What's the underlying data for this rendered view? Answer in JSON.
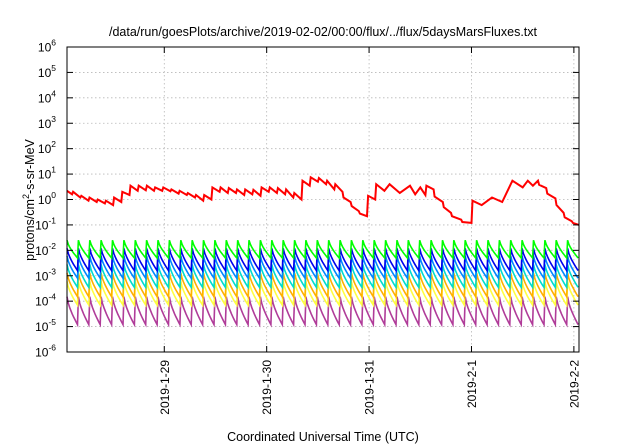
{
  "chart_data": {
    "type": "line",
    "title": "/data/run/goesPlots/archive/2019-02-02/00:00/flux/../flux/5daysMarsFluxes.txt",
    "xlabel": "Coordinated Universal Time (UTC)",
    "ylabel": "protons/cm²-s-sr-MeV",
    "ylabel_base": "protons/cm",
    "ylabel_sup": "2",
    "ylabel_rest": "-s-sr-MeV",
    "yscale": "log",
    "ylim": [
      1e-06,
      1000000.0
    ],
    "xlim_days": [
      -0.95,
      4.05
    ],
    "grid": true,
    "x_ticks": [
      {
        "label": "2019-1-29",
        "day": 0
      },
      {
        "label": "2019-1-30",
        "day": 1
      },
      {
        "label": "2019-1-31",
        "day": 2
      },
      {
        "label": "2019-2-1",
        "day": 3
      },
      {
        "label": "2019-2-2",
        "day": 4
      }
    ],
    "y_ticks": [
      {
        "exp": -6
      },
      {
        "exp": -5
      },
      {
        "exp": -4
      },
      {
        "exp": -3
      },
      {
        "exp": -2
      },
      {
        "exp": -1
      },
      {
        "exp": 0
      },
      {
        "exp": 1
      },
      {
        "exp": 2
      },
      {
        "exp": 3
      },
      {
        "exp": 4
      },
      {
        "exp": 5
      },
      {
        "exp": 6
      }
    ],
    "y_tick_base": "10",
    "series": [
      {
        "color": "#ff0000",
        "x_days": [
          -0.95,
          -0.9,
          -0.89,
          -0.82,
          -0.81,
          -0.74,
          -0.73,
          -0.66,
          -0.65,
          -0.58,
          -0.57,
          -0.5,
          -0.49,
          -0.42,
          -0.41,
          -0.34,
          -0.33,
          -0.26,
          -0.25,
          -0.18,
          -0.17,
          -0.1,
          -0.09,
          -0.02,
          -0.01,
          0.06,
          0.07,
          0.14,
          0.15,
          0.22,
          0.23,
          0.3,
          0.31,
          0.38,
          0.39,
          0.46,
          0.47,
          0.54,
          0.55,
          0.62,
          0.63,
          0.7,
          0.71,
          0.78,
          0.79,
          0.86,
          0.87,
          0.94,
          0.95,
          1.02,
          1.03,
          1.1,
          1.11,
          1.18,
          1.19,
          1.26,
          1.27,
          1.34,
          1.35,
          1.42,
          1.43,
          1.5,
          1.51,
          1.58,
          1.59,
          1.66,
          1.67,
          1.74,
          1.75,
          1.82,
          1.83,
          1.9,
          1.91,
          1.98,
          1.99,
          2.06,
          2.07,
          2.15,
          2.2,
          2.3,
          2.4,
          2.45,
          2.5,
          2.55,
          2.56,
          2.63,
          2.64,
          2.72,
          2.73,
          2.8,
          2.81,
          2.9,
          2.91,
          3.0,
          3.01,
          3.1,
          3.2,
          3.3,
          3.4,
          3.5,
          3.55,
          3.6,
          3.65,
          3.66,
          3.73,
          3.74,
          3.82,
          3.83,
          3.9,
          3.91,
          3.98,
          3.99,
          4.05
        ],
        "values": [
          2.2,
          1.6,
          2.0,
          1.2,
          1.4,
          0.9,
          1.2,
          0.8,
          1.0,
          0.7,
          0.9,
          0.6,
          1.2,
          0.8,
          2.0,
          1.5,
          3.5,
          2.2,
          3.5,
          2.3,
          3.5,
          2.2,
          3.0,
          2.2,
          3.0,
          2.1,
          2.5,
          1.7,
          2.2,
          1.5,
          1.8,
          1.2,
          1.5,
          0.9,
          1.5,
          1.0,
          3.0,
          2.0,
          3.0,
          1.8,
          2.8,
          1.8,
          2.5,
          1.5,
          2.5,
          1.6,
          2.4,
          1.4,
          3.0,
          2.0,
          3.0,
          1.8,
          2.8,
          1.6,
          2.5,
          1.2,
          1.8,
          1.0,
          5.5,
          3.5,
          7.5,
          5.0,
          7.0,
          4.0,
          5.5,
          2.5,
          4.0,
          2.0,
          1.2,
          0.8,
          0.55,
          0.35,
          0.28,
          0.22,
          1.4,
          1.0,
          4.0,
          2.2,
          4.0,
          1.8,
          3.5,
          1.6,
          3.0,
          1.5,
          3.5,
          2.5,
          1.3,
          0.8,
          0.5,
          0.3,
          0.22,
          0.16,
          0.13,
          0.12,
          0.9,
          0.6,
          1.2,
          0.8,
          5.5,
          3.0,
          5.5,
          3.5,
          5.5,
          3.8,
          2.8,
          1.7,
          1.1,
          0.6,
          0.3,
          0.2,
          0.14,
          0.12,
          0.1
        ]
      },
      {
        "color": "#00ff00",
        "pattern": "sawtooth",
        "cycles": 45,
        "high": 0.025,
        "low": 0.005
      },
      {
        "color": "#0000ee",
        "pattern": "sawtooth",
        "cycles": 45,
        "high": 0.012,
        "low": 0.0016
      },
      {
        "color": "#0088ff",
        "pattern": "sawtooth",
        "cycles": 45,
        "high": 0.006,
        "low": 0.0008
      },
      {
        "color": "#00ddcc",
        "pattern": "sawtooth",
        "cycles": 45,
        "high": 0.0028,
        "low": 0.00035
      },
      {
        "color": "#ffb000",
        "pattern": "sawtooth",
        "cycles": 45,
        "high": 0.0013,
        "low": 0.00015
      },
      {
        "color": "#ffff40",
        "pattern": "sawtooth",
        "cycles": 45,
        "high": 0.0006,
        "low": 7e-05
      },
      {
        "color": "#b03c99",
        "pattern": "sawtooth",
        "cycles": 45,
        "high": 0.00015,
        "low": 1.2e-05
      }
    ]
  }
}
